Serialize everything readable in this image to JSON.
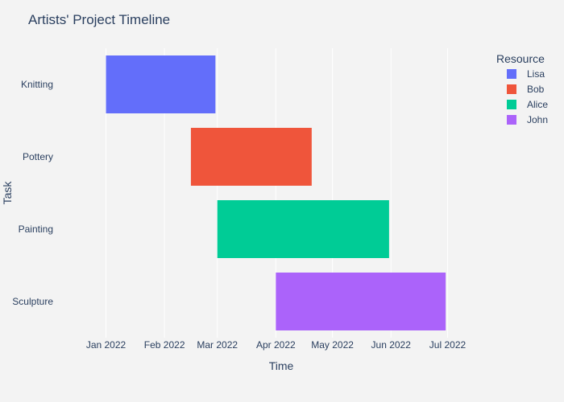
{
  "chart_data": {
    "type": "bar",
    "orientation": "horizontal",
    "title": "Artists' Project Timeline",
    "xlabel": "Time",
    "ylabel": "Task",
    "legend_title": "Resource",
    "legend_position": "top-right",
    "grid": true,
    "x_ticks": [
      {
        "date": "2022-01-01",
        "label": "Jan 2022"
      },
      {
        "date": "2022-02-01",
        "label": "Feb 2022"
      },
      {
        "date": "2022-03-01",
        "label": "Mar 2022"
      },
      {
        "date": "2022-04-01",
        "label": "Apr 2022"
      },
      {
        "date": "2022-05-01",
        "label": "May 2022"
      },
      {
        "date": "2022-06-01",
        "label": "Jun 2022"
      },
      {
        "date": "2022-07-01",
        "label": "Jul 2022"
      }
    ],
    "xlim": [
      "2021-12-10",
      "2022-07-20"
    ],
    "categories": [
      "Knitting",
      "Pottery",
      "Painting",
      "Sculpture"
    ],
    "series": [
      {
        "name": "Lisa",
        "task": "Knitting",
        "start": "2022-01-01",
        "finish": "2022-02-28",
        "color": "#636efa"
      },
      {
        "name": "Bob",
        "task": "Pottery",
        "start": "2022-02-15",
        "finish": "2022-04-20",
        "color": "#EF553B"
      },
      {
        "name": "Alice",
        "task": "Painting",
        "start": "2022-03-01",
        "finish": "2022-05-31",
        "color": "#00cc96"
      },
      {
        "name": "John",
        "task": "Sculpture",
        "start": "2022-04-01",
        "finish": "2022-06-30",
        "color": "#ab63fa"
      }
    ]
  }
}
